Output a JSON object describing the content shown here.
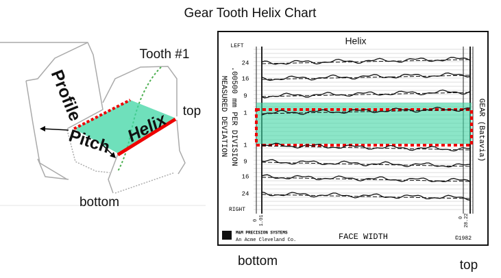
{
  "header": {
    "title": "Gear Tooth Helix Chart"
  },
  "tooth_diagram": {
    "tooth_label": "Tooth #1",
    "profile_label": "Profile",
    "pitch_label": "Pitch",
    "helix_label": "Helix",
    "top_label": "top",
    "bottom_label": "bottom"
  },
  "helix_chart": {
    "title": "Helix",
    "left_label": "LEFT",
    "right_label": "RIGHT",
    "row_labels": [
      "24",
      "16",
      "9",
      "1",
      "1",
      "9",
      "16",
      "24"
    ],
    "scale_label": ".00500 mm  PER DIVISION",
    "deviation_label": "MEASURED DEVIATION",
    "gear_label": "GEAR (Batavia)",
    "x_start_labels": [
      "0",
      "1.01"
    ],
    "x_end_labels": [
      "0",
      "28.22"
    ],
    "company": "M&M PRECISION SYSTEMS",
    "company_sub": "An Acme Cleveland Co.",
    "axis_label": "FACE WIDTH",
    "copyright": "©1982"
  },
  "footer": {
    "bottom_label": "bottom",
    "top_label": "top"
  }
}
